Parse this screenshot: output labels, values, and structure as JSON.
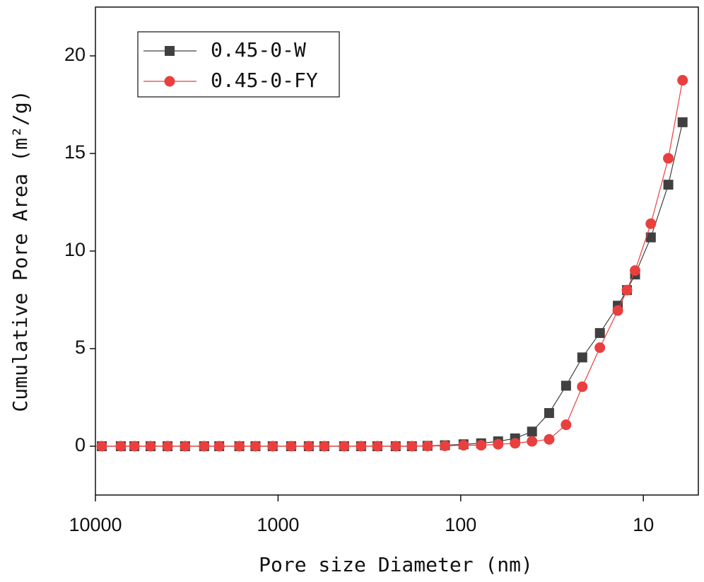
{
  "chart_data": {
    "type": "line",
    "x_label": "Pore size Diameter (nm)",
    "y_label": "Cumulative Pore Area (m²/g)",
    "x": [
      9230,
      7260,
      6120,
      4990,
      4030,
      3230,
      2540,
      2100,
      1630,
      1330,
      1070,
      848,
      679,
      558,
      435,
      351,
      286,
      227,
      185,
      152,
      122,
      96.5,
      77.3,
      62.4,
      50.4,
      40.7,
      32.8,
      26.5,
      21.6,
      17.3,
      13.8,
      12.3,
      11.1,
      9.1,
      7.3,
      6.1
    ],
    "series": [
      {
        "name": "0.45-0-W",
        "color": "#404040",
        "marker": "square",
        "values": [
          0,
          0,
          0,
          0,
          0,
          0,
          0,
          0,
          0,
          0,
          0,
          0,
          0,
          0,
          0,
          0,
          0,
          0,
          0,
          0.02,
          0.05,
          0.1,
          0.15,
          0.25,
          0.4,
          0.75,
          1.7,
          3.1,
          4.55,
          5.8,
          7.2,
          8.0,
          8.8,
          10.7,
          13.4,
          16.6
        ]
      },
      {
        "name": "0.45-0-FY",
        "color": "#e8403f",
        "marker": "circle",
        "values": [
          0,
          0,
          0,
          0,
          0,
          0,
          0,
          0,
          0,
          0,
          0,
          0,
          0,
          0,
          0,
          0,
          0,
          0,
          0,
          0.01,
          0.02,
          0.05,
          0.05,
          0.1,
          0.15,
          0.25,
          0.35,
          1.1,
          3.05,
          5.05,
          6.95,
          8.0,
          9.0,
          11.4,
          14.75,
          18.75
        ]
      }
    ],
    "xlim": [
      10000,
      5
    ],
    "x_log": true,
    "xticks": [
      10000,
      1000,
      100,
      10
    ],
    "ylim": [
      -2.5,
      22.5
    ],
    "yticks": [
      0,
      5,
      10,
      15,
      20
    ],
    "legend": "upper left"
  }
}
